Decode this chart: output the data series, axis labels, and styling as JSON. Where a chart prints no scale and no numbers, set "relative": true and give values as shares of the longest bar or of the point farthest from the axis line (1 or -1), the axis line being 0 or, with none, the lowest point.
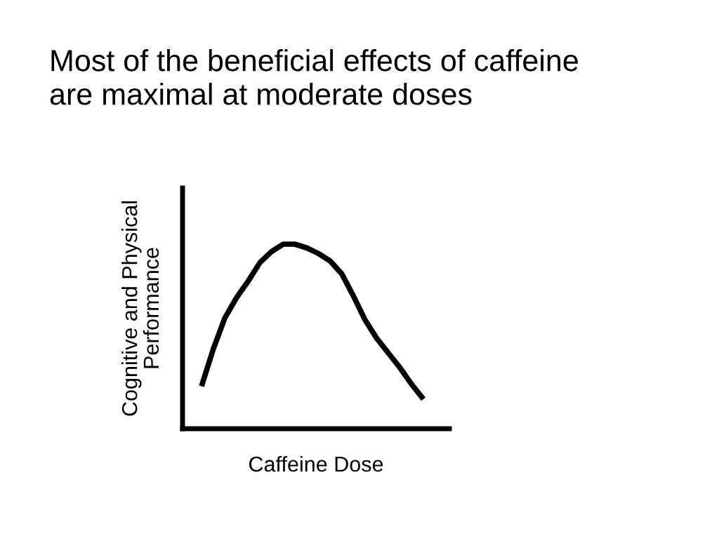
{
  "chart_data": {
    "type": "line",
    "title": "Most of the beneficial effects of caffeine\nare maximal at moderate doses",
    "xlabel": "Caffeine Dose",
    "ylabel": "Cognitive and Physical\nPerformance",
    "relative": true,
    "tick_labels": false,
    "categories": [
      null,
      null,
      null,
      null,
      null,
      null,
      null,
      null,
      null,
      null,
      null,
      null,
      null,
      null,
      null,
      null,
      null,
      null,
      null,
      null
    ],
    "series": [
      {
        "color": "#000000",
        "values": [
          0.23,
          0.43,
          0.6,
          0.71,
          0.8,
          0.9,
          0.96,
          1.0,
          1.0,
          0.98,
          0.95,
          0.91,
          0.84,
          0.72,
          0.59,
          0.49,
          0.41,
          0.33,
          0.24,
          0.16
        ]
      }
    ]
  }
}
